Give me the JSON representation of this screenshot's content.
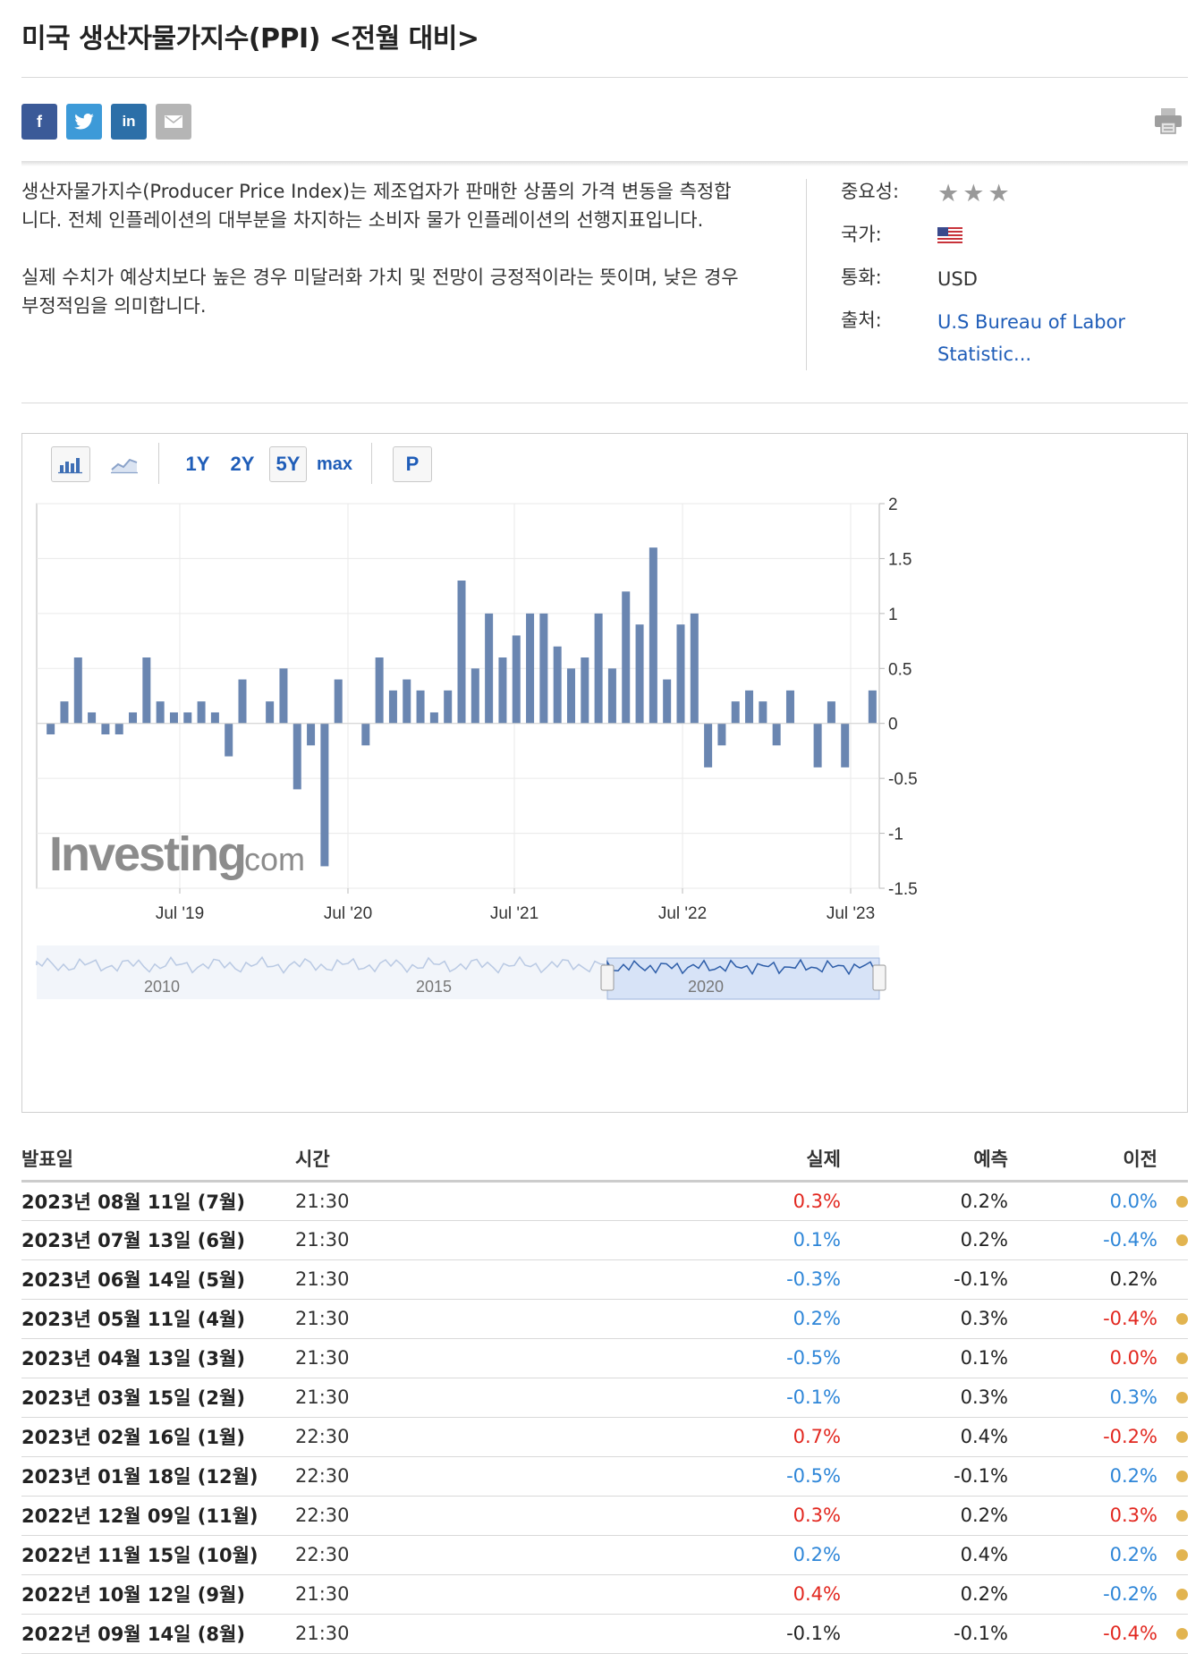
{
  "page": {
    "title": "미국 생산자물가지수(PPI) <전월 대비>"
  },
  "share": {
    "facebook": "f",
    "linkedin": "in"
  },
  "description": {
    "p1": "생산자물가지수(Producer Price Index)는 제조업자가 판매한 상품의 가격 변동을 측정합니다. 전체 인플레이션의 대부분을 차지하는 소비자 물가 인플레이션의 선행지표입니다.",
    "p2": "실제 수치가 예상치보다 높은 경우 미달러화 가치 및 전망이 긍정적이라는 뜻이며, 낮은 경우 부정적임을 의미합니다."
  },
  "meta": {
    "importance_label": "중요성:",
    "importance_stars": 3,
    "country_label": "국가:",
    "country_flag": "us-flag-icon",
    "currency_label": "통화:",
    "currency_value": "USD",
    "source_label": "출처:",
    "source_value": "U.S Bureau of Labor Statistic..."
  },
  "toolbar": {
    "ranges": [
      "1Y",
      "2Y",
      "5Y",
      "max"
    ],
    "selected_range": "5Y",
    "p_button": "P"
  },
  "chart_data": {
    "type": "bar",
    "title": "미국 생산자물가지수(PPI) <전월 대비>",
    "ylabel": "%",
    "ylim": [
      -1.5,
      2
    ],
    "yticks": [
      2,
      1.5,
      1,
      0.5,
      0,
      -0.5,
      -1,
      -1.5
    ],
    "y_tick_labels": [
      "2",
      "1.5",
      "1",
      "0.5",
      "0",
      "-0.5",
      "-1",
      "-1.5"
    ],
    "x_tick_labels": [
      "Jul '19",
      "Jul '20",
      "Jul '21",
      "Jul '22",
      "Jul '23"
    ],
    "values": [
      -0.1,
      0.2,
      0.6,
      0.1,
      -0.1,
      -0.1,
      0.1,
      0.6,
      0.2,
      0.1,
      0.1,
      0.2,
      0.1,
      -0.3,
      0.4,
      null,
      0.2,
      0.5,
      -0.6,
      -0.2,
      -1.3,
      0.4,
      null,
      -0.2,
      0.6,
      0.3,
      0.4,
      0.3,
      0.1,
      0.3,
      1.3,
      0.5,
      1.0,
      0.6,
      0.8,
      1.0,
      1.0,
      0.7,
      0.5,
      0.6,
      1.0,
      0.5,
      1.2,
      0.9,
      1.6,
      0.4,
      0.9,
      1.0,
      -0.4,
      -0.2,
      0.2,
      0.3,
      0.2,
      -0.2,
      0.3,
      null,
      -0.4,
      0.2,
      -0.4,
      null,
      0.3
    ],
    "watermark": "Investing",
    "watermark_suffix": ".com",
    "navigator_labels": [
      "2010",
      "2015",
      "2020"
    ],
    "bar_color": "#6a86b1"
  },
  "table": {
    "headers": {
      "date": "발표일",
      "time": "시간",
      "actual": "실제",
      "forecast": "예측",
      "previous": "이전"
    },
    "rows": [
      {
        "date": "2023년 08월 11일 (7월)",
        "time": "21:30",
        "actual": "0.3%",
        "actual_color": "red",
        "forecast": "0.2%",
        "previous": "0.0%",
        "previous_color": "blue",
        "dot": true
      },
      {
        "date": "2023년 07월 13일 (6월)",
        "time": "21:30",
        "actual": "0.1%",
        "actual_color": "blue",
        "forecast": "0.2%",
        "previous": "-0.4%",
        "previous_color": "blue",
        "dot": true
      },
      {
        "date": "2023년 06월 14일 (5월)",
        "time": "21:30",
        "actual": "-0.3%",
        "actual_color": "blue",
        "forecast": "-0.1%",
        "previous": "0.2%",
        "previous_color": "black",
        "dot": false
      },
      {
        "date": "2023년 05월 11일 (4월)",
        "time": "21:30",
        "actual": "0.2%",
        "actual_color": "blue",
        "forecast": "0.3%",
        "previous": "-0.4%",
        "previous_color": "red",
        "dot": true
      },
      {
        "date": "2023년 04월 13일 (3월)",
        "time": "21:30",
        "actual": "-0.5%",
        "actual_color": "blue",
        "forecast": "0.1%",
        "previous": "0.0%",
        "previous_color": "red",
        "dot": true
      },
      {
        "date": "2023년 03월 15일 (2월)",
        "time": "21:30",
        "actual": "-0.1%",
        "actual_color": "blue",
        "forecast": "0.3%",
        "previous": "0.3%",
        "previous_color": "blue",
        "dot": true
      },
      {
        "date": "2023년 02월 16일 (1월)",
        "time": "22:30",
        "actual": "0.7%",
        "actual_color": "red",
        "forecast": "0.4%",
        "previous": "-0.2%",
        "previous_color": "red",
        "dot": true
      },
      {
        "date": "2023년 01월 18일 (12월)",
        "time": "22:30",
        "actual": "-0.5%",
        "actual_color": "blue",
        "forecast": "-0.1%",
        "previous": "0.2%",
        "previous_color": "blue",
        "dot": true
      },
      {
        "date": "2022년 12월 09일 (11월)",
        "time": "22:30",
        "actual": "0.3%",
        "actual_color": "red",
        "forecast": "0.2%",
        "previous": "0.3%",
        "previous_color": "red",
        "dot": true
      },
      {
        "date": "2022년 11월 15일 (10월)",
        "time": "22:30",
        "actual": "0.2%",
        "actual_color": "blue",
        "forecast": "0.4%",
        "previous": "0.2%",
        "previous_color": "blue",
        "dot": true
      },
      {
        "date": "2022년 10월 12일 (9월)",
        "time": "21:30",
        "actual": "0.4%",
        "actual_color": "red",
        "forecast": "0.2%",
        "previous": "-0.2%",
        "previous_color": "blue",
        "dot": true
      },
      {
        "date": "2022년 09월 14일 (8월)",
        "time": "21:30",
        "actual": "-0.1%",
        "actual_color": "black",
        "forecast": "-0.1%",
        "previous": "-0.4%",
        "previous_color": "red",
        "dot": true
      }
    ]
  }
}
